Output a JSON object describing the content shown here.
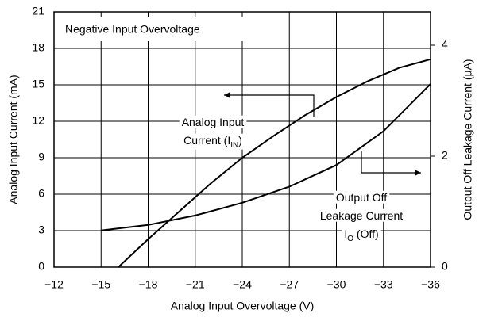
{
  "chart_data": {
    "type": "line",
    "xlabel": "Analog Input Overvoltage (V)",
    "ylabel": "Analog Input Current (mA)",
    "y2label": "Output Off Leakage Current (μA)",
    "xlim": [
      -12,
      -36
    ],
    "xticks": [
      {
        "value": -12,
        "label": "−12"
      },
      {
        "value": -15,
        "label": "−15"
      },
      {
        "value": -18,
        "label": "−18"
      },
      {
        "value": -21,
        "label": "−21"
      },
      {
        "value": -24,
        "label": "−24"
      },
      {
        "value": -27,
        "label": "−27"
      },
      {
        "value": -30,
        "label": "−30"
      },
      {
        "value": -33,
        "label": "−33"
      },
      {
        "value": -36,
        "label": "−36"
      }
    ],
    "ylim": [
      0,
      21
    ],
    "yticks": [
      0,
      3,
      6,
      9,
      12,
      15,
      18,
      21
    ],
    "y2lim": [
      0,
      4.6
    ],
    "y2ticks": [
      0,
      2,
      4
    ],
    "grid": true,
    "title": "Negative Input Overvoltage",
    "annotations": [
      {
        "lines": [
          [
            "Analog Input"
          ],
          [
            "Current (I",
            "IN",
            ")"
          ]
        ]
      },
      {
        "lines": [
          [
            "Output Off"
          ],
          [
            "Leakage Current"
          ],
          [
            "I",
            "O",
            " (Off)"
          ]
        ]
      }
    ],
    "series": [
      {
        "color": "#000000",
        "x": [
          -16.1,
          -18,
          -20,
          -22,
          -24,
          -26,
          -28,
          -30,
          -32,
          -34,
          -36
        ],
        "values": [
          0,
          2.3,
          4.6,
          6.9,
          9.0,
          10.8,
          12.5,
          14.0,
          15.3,
          16.4,
          17.1
        ]
      },
      {
        "color": "#000000",
        "axis": "y2",
        "x": [
          -15,
          -18,
          -21,
          -24,
          -27,
          -30,
          -33,
          -36
        ],
        "values": [
          0.66,
          0.76,
          0.93,
          1.16,
          1.45,
          1.84,
          2.45,
          3.3
        ]
      }
    ]
  }
}
